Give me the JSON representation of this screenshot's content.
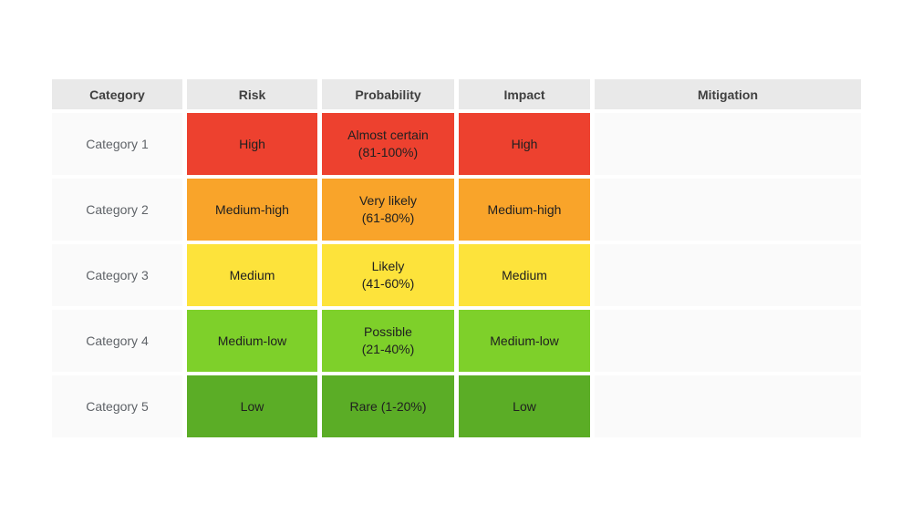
{
  "palette": {
    "page_bg": "#ffffff",
    "header_bg": "#e9e9e9",
    "row_bg": "#fafafa",
    "header_text": "#404040",
    "category_text": "#5f6368",
    "cell_text": "#202020",
    "red": "#ed412f",
    "orange": "#f9a42a",
    "yellow": "#fde33b",
    "light_green": "#7ed02a",
    "green": "#5bad26"
  },
  "table": {
    "headers": [
      {
        "label": "Category"
      },
      {
        "label": "Risk"
      },
      {
        "label": "Probability"
      },
      {
        "label": "Impact"
      },
      {
        "label": "Mitigation"
      }
    ]
  },
  "rows": [
    {
      "category": "Category 1",
      "risk": "High",
      "prob_line1": "Almost certain",
      "prob_line2": "(81-100%)",
      "impact": "High",
      "mitigation": "",
      "color": "#ed412f"
    },
    {
      "category": "Category 2",
      "risk": "Medium-high",
      "prob_line1": "Very likely",
      "prob_line2": "(61-80%)",
      "impact": "Medium-high",
      "mitigation": "",
      "color": "#f9a42a"
    },
    {
      "category": "Category 3",
      "risk": "Medium",
      "prob_line1": "Likely",
      "prob_line2": "(41-60%)",
      "impact": "Medium",
      "mitigation": "",
      "color": "#fde33b"
    },
    {
      "category": "Category 4",
      "risk": "Medium-low",
      "prob_line1": "Possible",
      "prob_line2": "(21-40%)",
      "impact": "Medium-low",
      "mitigation": "",
      "color": "#7ed02a"
    },
    {
      "category": "Category 5",
      "risk": "Low",
      "prob_line1": "Rare (1-20%)",
      "prob_line2": "",
      "impact": "Low",
      "mitigation": "",
      "color": "#5bad26"
    }
  ],
  "chart_data": {
    "type": "table",
    "title": "",
    "columns": [
      "Category",
      "Risk",
      "Probability",
      "Impact",
      "Mitigation"
    ],
    "rows": [
      [
        "Category 1",
        "High",
        "Almost certain (81-100%)",
        "High",
        ""
      ],
      [
        "Category 2",
        "Medium-high",
        "Very likely (61-80%)",
        "Medium-high",
        ""
      ],
      [
        "Category 3",
        "Medium",
        "Likely (41-60%)",
        "Medium",
        ""
      ],
      [
        "Category 4",
        "Medium-low",
        "Possible (21-40%)",
        "Medium-low",
        ""
      ],
      [
        "Category 5",
        "Low",
        "Rare (1-20%)",
        "Low",
        ""
      ]
    ],
    "row_colors": [
      "#ed412f",
      "#f9a42a",
      "#fde33b",
      "#7ed02a",
      "#5bad26"
    ],
    "layout_hints": {
      "colored_columns": [
        "Risk",
        "Probability",
        "Impact"
      ],
      "header_background": "#e9e9e9",
      "row_background": "#fafafa",
      "cell_gap_color": "#ffffff"
    }
  }
}
